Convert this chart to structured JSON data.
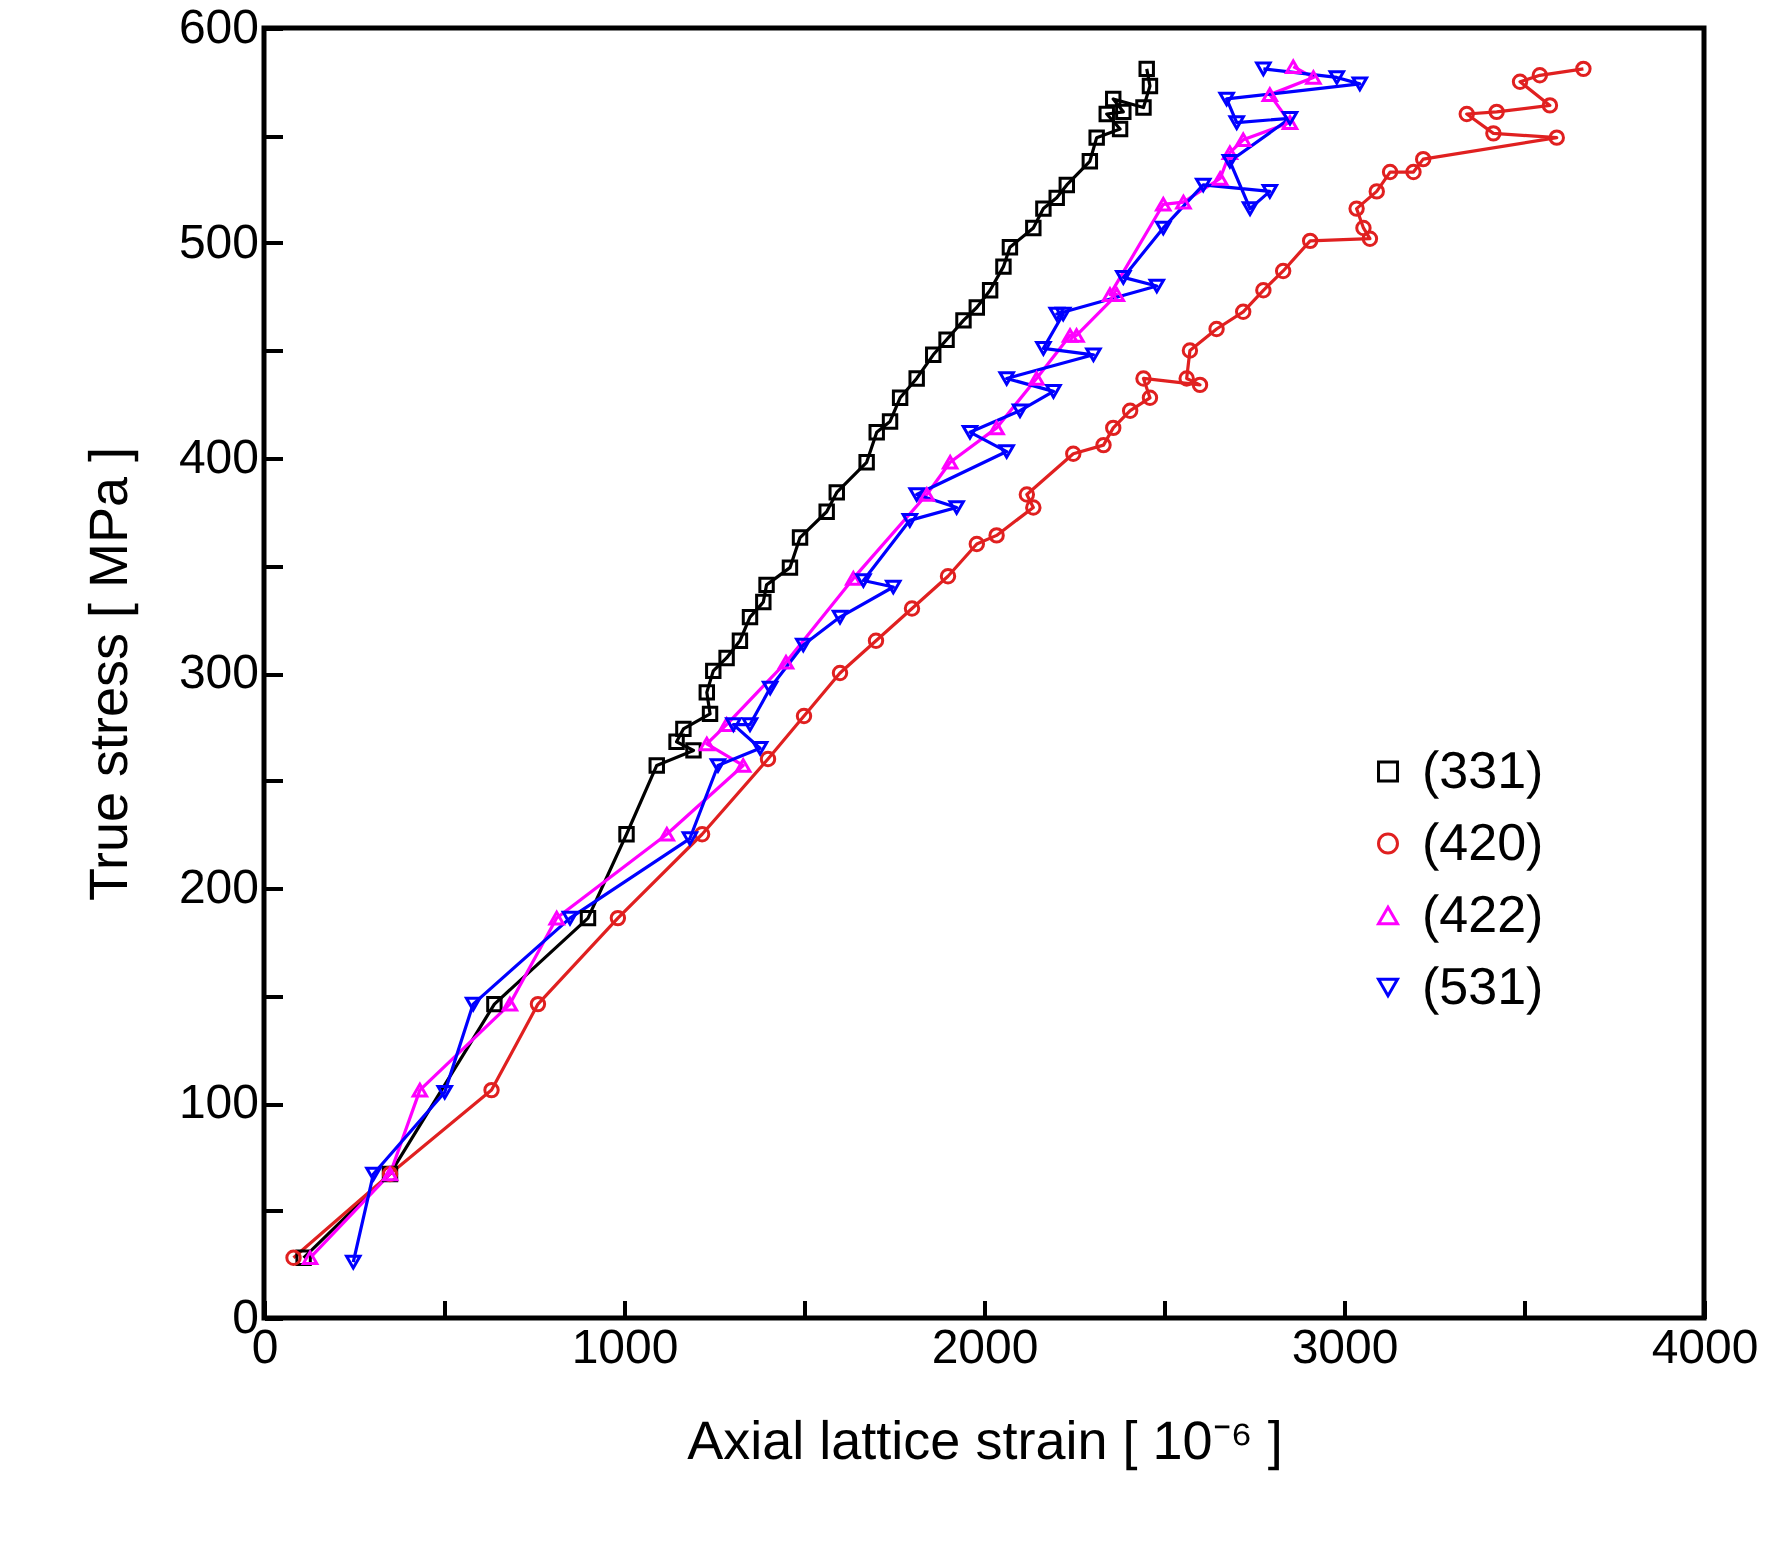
{
  "chart_data": {
    "type": "line",
    "xlabel": "Axial lattice strain [ 10⁻⁶ ]",
    "ylabel": "True stress  [ MPa ]",
    "xlim": [
      0,
      4000
    ],
    "ylim": [
      0,
      600
    ],
    "xticks": [
      0,
      {
        "value": 500,
        "label": null
      },
      1000,
      {
        "value": 1500,
        "label": null
      },
      2000,
      {
        "value": 2500,
        "label": null
      },
      3000,
      {
        "value": 3500,
        "label": null
      },
      4000
    ],
    "yticks": [
      0,
      {
        "value": 50,
        "label": null
      },
      100,
      {
        "value": 150,
        "label": null
      },
      200,
      {
        "value": 250,
        "label": null
      },
      300,
      {
        "value": 350,
        "label": null
      },
      400,
      {
        "value": 450,
        "label": null
      },
      500,
      {
        "value": 550,
        "label": null
      },
      600
    ],
    "grid": false,
    "legend": "right",
    "series": [
      {
        "name": "(331)",
        "color": "#000000",
        "marker": "square",
        "x": [
          110,
          350,
          640,
          900,
          1007,
          1091,
          1193,
          1146,
          1165,
          1239,
          1230,
          1248,
          1285,
          1322,
          1350,
          1387,
          1396,
          1461,
          1489,
          1563,
          1591,
          1674,
          1702,
          1739,
          1767,
          1813,
          1859,
          1896,
          1943,
          1980,
          2017,
          2054,
          2072,
          2137,
          2165,
          2202,
          2230,
          2294,
          2313,
          2378,
          2341,
          2387,
          2359,
          2443,
          2461,
          2452
        ],
        "values": [
          28,
          67,
          146,
          186,
          225,
          257,
          264,
          268,
          274,
          281,
          291,
          301,
          307,
          315,
          326,
          333,
          341,
          349,
          363,
          375,
          384,
          398,
          412,
          417,
          428,
          437,
          448,
          455,
          464,
          470,
          478,
          489,
          498,
          507,
          516,
          521,
          527,
          538,
          549,
          553,
          560,
          561,
          567,
          563,
          573,
          581
        ]
      },
      {
        "name": "(420)",
        "color": "#e02020",
        "marker": "circle",
        "x": [
          82,
          350,
          632,
          761,
          983,
          1217,
          1400,
          1500,
          1600,
          1700,
          1800,
          1900,
          1980,
          2035,
          2137,
          2119,
          2248,
          2332,
          2359,
          2406,
          2461,
          2443,
          2600,
          2563,
          2572,
          2646,
          2720,
          2776,
          2831,
          2906,
          3072,
          3054,
          3035,
          3091,
          3128,
          3193,
          3220,
          3591,
          3415,
          3341,
          3424,
          3572,
          3489,
          3544,
          3665
        ],
        "values": [
          28,
          67,
          106,
          146,
          186,
          225,
          260,
          280,
          300,
          315,
          330,
          345,
          360,
          364,
          377,
          383,
          402,
          406,
          414,
          422,
          428,
          437,
          434,
          437,
          450,
          460,
          468,
          478,
          487,
          501,
          502,
          507,
          516,
          524,
          533,
          533,
          539,
          549,
          551,
          560,
          561,
          564,
          575,
          578,
          581
        ]
      },
      {
        "name": "(422)",
        "color": "#ff00ff",
        "marker": "triangle",
        "x": [
          128,
          350,
          433,
          683,
          813,
          1119,
          1331,
          1230,
          1285,
          1450,
          1637,
          1841,
          1906,
          2035,
          2146,
          2239,
          2257,
          2369,
          2350,
          2498,
          2554,
          2656,
          2683,
          2720,
          2850,
          2794,
          2915,
          2859
        ],
        "values": [
          28,
          67,
          106,
          146,
          186,
          225,
          257,
          267,
          276,
          305,
          344,
          383,
          398,
          414,
          437,
          457,
          457,
          476,
          476,
          518,
          519,
          530,
          542,
          548,
          556,
          569,
          577,
          582
        ]
      },
      {
        "name": "(531)",
        "color": "#0000ff",
        "marker": "triangle-down",
        "x": [
          248,
          304,
          502,
          581,
          850,
          1183,
          1261,
          1378,
          1304,
          1350,
          1406,
          1498,
          1600,
          1748,
          1665,
          1794,
          1924,
          1813,
          2063,
          1961,
          2100,
          2193,
          2063,
          2304,
          2165,
          2220,
          2202,
          2480,
          2387,
          2498,
          2609,
          2794,
          2739,
          2683,
          2850,
          2702,
          2674,
          3044,
          2980,
          2776
        ],
        "values": [
          26,
          67,
          105,
          146,
          186,
          223,
          257,
          265,
          276,
          276,
          293,
          313,
          326,
          340,
          343,
          371,
          377,
          383,
          403,
          412,
          422,
          431,
          437,
          448,
          451,
          467,
          467,
          480,
          484,
          507,
          527,
          524,
          516,
          538,
          558,
          556,
          567,
          574,
          577,
          581
        ]
      }
    ]
  }
}
